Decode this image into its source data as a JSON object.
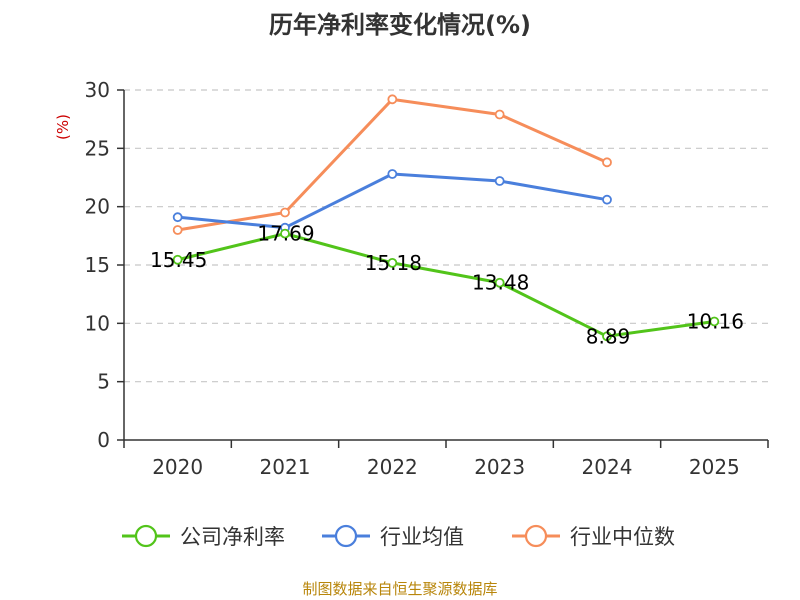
{
  "chart_data": {
    "type": "line",
    "title": "历年净利率变化情况(%)",
    "ylabel": "(%)",
    "xlabel": "",
    "categories": [
      "2020",
      "2021",
      "2022",
      "2023",
      "2024",
      "2025"
    ],
    "ylim": [
      0,
      30
    ],
    "yticks": [
      "0",
      "5",
      "10",
      "15",
      "20",
      "25",
      "30"
    ],
    "grid": true,
    "legend_position": "bottom",
    "series": [
      {
        "name": "公司净利率",
        "color": "#52c41a",
        "values": [
          15.45,
          17.69,
          15.18,
          13.48,
          8.89,
          10.16
        ],
        "labels": [
          "15.45",
          "17.69",
          "15.18",
          "13.48",
          "8.89",
          "10.16"
        ]
      },
      {
        "name": "行业均值",
        "color": "#4a7fdc",
        "values": [
          19.1,
          18.2,
          22.8,
          22.2,
          20.6,
          null
        ]
      },
      {
        "name": "行业中位数",
        "color": "#f68d5a",
        "values": [
          18.0,
          19.5,
          29.2,
          27.9,
          23.8,
          null
        ]
      }
    ],
    "source": "制图数据来自恒生聚源数据库"
  }
}
